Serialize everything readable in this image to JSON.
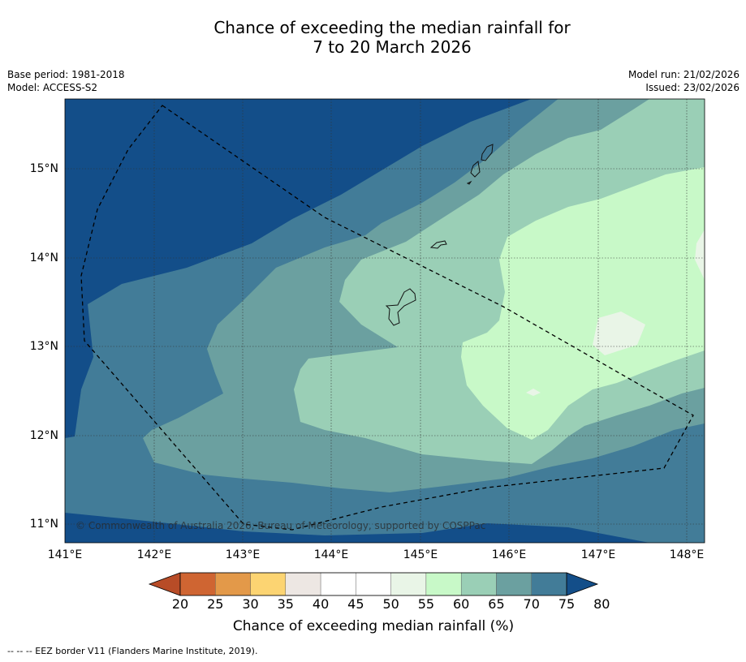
{
  "title_line1": "Chance of exceeding the median rainfall for",
  "title_line2": "7 to 20 March 2026",
  "base_period": "Base period: 1981-2018",
  "model": "Model: ACCESS-S2",
  "model_run": "Model run: 21/02/2026",
  "issued": "Issued: 23/02/2026",
  "lat_labels": [
    "15°N",
    "14°N",
    "13°N",
    "12°N",
    "11°N"
  ],
  "lon_labels": [
    "141°E",
    "142°E",
    "143°E",
    "144°E",
    "145°E",
    "146°E",
    "147°E",
    "148°E"
  ],
  "copyright": "© Commonwealth of Australia 2026, Bureau of Meteorology, supported by COSPPac",
  "colorbar": {
    "ticks": [
      "20",
      "25",
      "30",
      "35",
      "40",
      "45",
      "50",
      "55",
      "60",
      "65",
      "70",
      "75",
      "80"
    ],
    "colors": [
      "#b84c27",
      "#cf6532",
      "#e39949",
      "#fcd472",
      "#ede7e3",
      "#ffffff",
      "#ffffff",
      "#e9f5e7",
      "#c8f9c8",
      "#9acfb6",
      "#6ba0a0",
      "#427c98",
      "#134e89"
    ],
    "label": "Chance of exceeding median rainfall (%)"
  },
  "footnote": "--  --  -- EEZ border V11 (Flanders Marine Institute, 2019)."
}
